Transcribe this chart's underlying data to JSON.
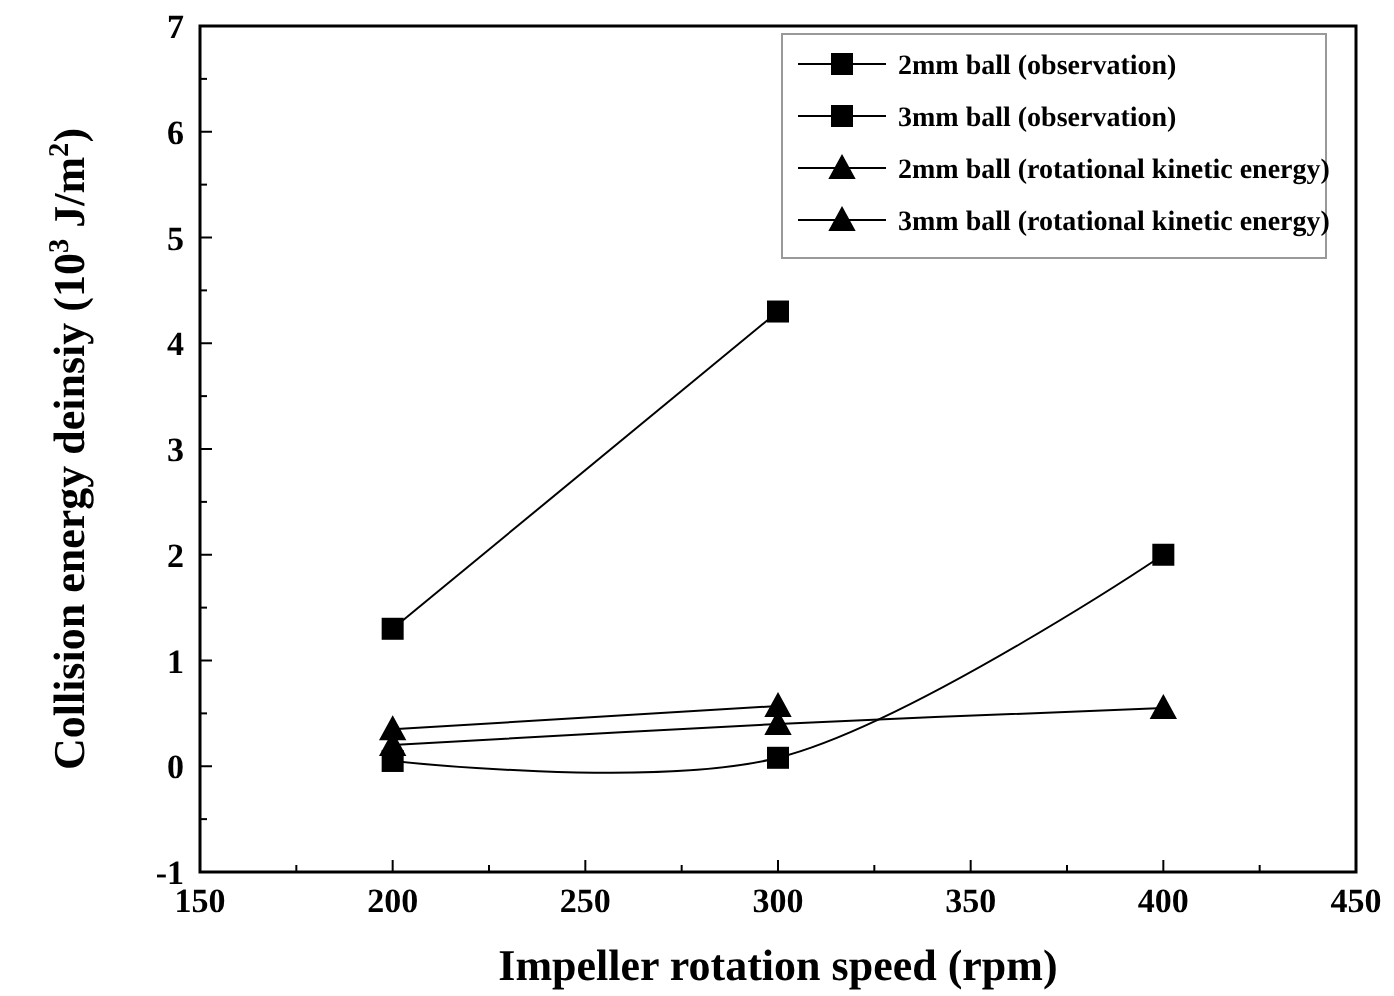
{
  "chart_data": {
    "type": "line",
    "xlabel": "Impeller rotation speed (rpm)",
    "ylabel": "Collision energy deinsiy (10$^{3}$ J/m$^{2}$)",
    "xlim": [
      150,
      450
    ],
    "xticks": [
      150,
      {
        "value": 175,
        "label": null
      },
      200,
      {
        "value": 225,
        "label": null
      },
      250,
      {
        "value": 275,
        "label": null
      },
      300,
      {
        "value": 325,
        "label": null
      },
      350,
      {
        "value": 375,
        "label": null
      },
      400,
      {
        "value": 425,
        "label": null
      },
      450
    ],
    "ylim": [
      -1,
      7
    ],
    "yticks": [
      -1,
      {
        "value": -0.5,
        "label": null
      },
      0,
      {
        "value": 0.5,
        "label": null
      },
      1,
      {
        "value": 1.5,
        "label": null
      },
      2,
      {
        "value": 2.5,
        "label": null
      },
      3,
      {
        "value": 3.5,
        "label": null
      },
      4,
      {
        "value": 4.5,
        "label": null
      },
      5,
      {
        "value": 5.5,
        "label": null
      },
      6,
      {
        "value": 6.5,
        "label": null
      },
      7
    ],
    "grid": false,
    "legend": "top right",
    "series": [
      {
        "name": "2mm ball (observation)",
        "color": "#000000",
        "marker": "square",
        "x": [
          200,
          300,
          400
        ],
        "values": [
          0.05,
          0.08,
          2.0
        ]
      },
      {
        "name": "3mm ball (observation)",
        "color": "#000000",
        "marker": "square",
        "x": [
          200,
          300
        ],
        "values": [
          1.3,
          4.3
        ]
      },
      {
        "name": "2mm ball (rotational kinetic energy)",
        "color": "#000000",
        "marker": "triangle",
        "x": [
          200,
          300,
          400
        ],
        "values": [
          0.2,
          0.4,
          0.55
        ]
      },
      {
        "name": "3mm ball (rotational kinetic energy)",
        "color": "#000000",
        "marker": "triangle",
        "x": [
          200,
          300
        ],
        "values": [
          0.35,
          0.57
        ]
      }
    ]
  }
}
